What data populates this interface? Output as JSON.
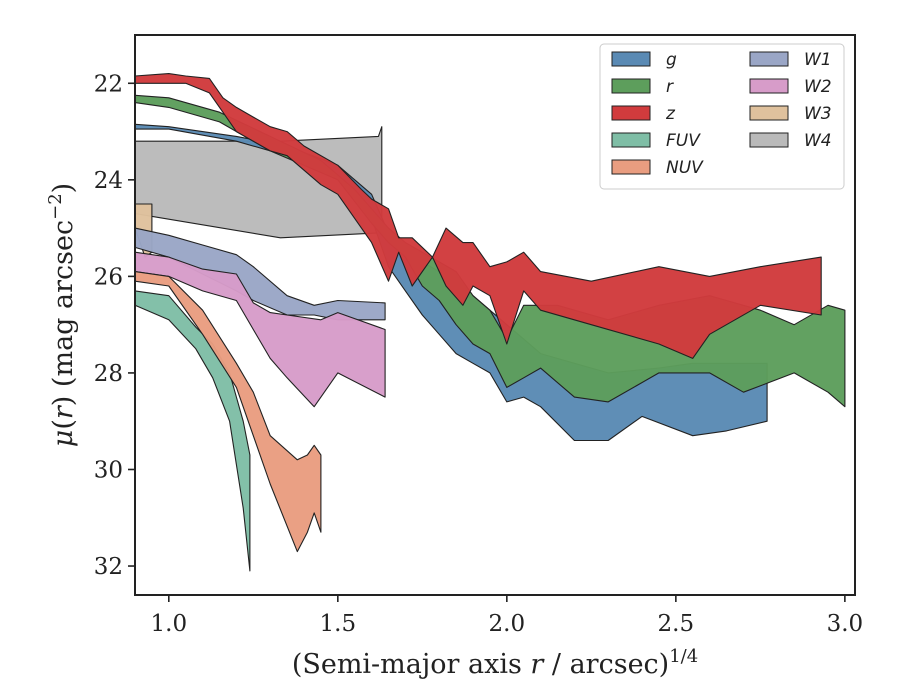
{
  "chart_data": {
    "type": "area",
    "title": "",
    "xlabel": "(Semi-major axis r / arcsec)^{1/4}",
    "ylabel": "μ(r) (mag arcsec^{-2})",
    "xlim": [
      0.9,
      3.03
    ],
    "ylim": [
      32.6,
      21.0
    ],
    "y_inverted": true,
    "xticks": [
      1.0,
      1.5,
      2.0,
      2.5,
      3.0
    ],
    "xtick_labels": [
      "1.0",
      "1.5",
      "2.0",
      "2.5",
      "3.0"
    ],
    "yticks": [
      22,
      24,
      26,
      28,
      30,
      32
    ],
    "ytick_labels": [
      "22",
      "24",
      "26",
      "28",
      "30",
      "32"
    ],
    "grid": false,
    "legend_position": "top-right",
    "legend_columns": 2,
    "series": [
      {
        "name": "W4",
        "color": "#bababa",
        "x": [
          0.9,
          1.33,
          1.62,
          1.63,
          1.63,
          1.62,
          1.33,
          0.9
        ],
        "upper": [
          23.2,
          23.2,
          23.1,
          22.9,
          24.9,
          25.1,
          25.2,
          24.7
        ]
      },
      {
        "name": "W3",
        "color": "#dfc19d",
        "x": [
          0.9,
          0.93,
          0.95,
          0.95,
          0.93,
          0.9
        ],
        "upper": [
          24.5,
          24.5,
          24.5,
          25.5,
          25.6,
          25.0
        ]
      },
      {
        "name": "W1",
        "color": "#9aa6c6",
        "x": [
          0.9,
          1.0,
          1.1,
          1.2,
          1.25,
          1.35,
          1.43,
          1.5,
          1.64,
          1.64,
          1.5,
          1.43,
          1.35,
          1.25,
          1.2,
          1.1,
          1.0,
          0.9
        ],
        "upper": [
          25.0,
          25.15,
          25.35,
          25.55,
          25.8,
          26.4,
          26.6,
          26.5,
          26.55,
          26.9,
          26.9,
          26.8,
          26.8,
          26.5,
          26.3,
          25.95,
          25.6,
          25.4
        ]
      },
      {
        "name": "W2",
        "color": "#d79cc9",
        "x": [
          0.9,
          1.0,
          1.1,
          1.2,
          1.25,
          1.3,
          1.35,
          1.45,
          1.5,
          1.64,
          1.64,
          1.5,
          1.43,
          1.35,
          1.3,
          1.25,
          1.2,
          1.1,
          1.0,
          0.9
        ],
        "upper": [
          25.5,
          25.6,
          25.85,
          25.95,
          26.55,
          26.75,
          26.8,
          26.9,
          26.75,
          27.1,
          28.5,
          28.0,
          28.7,
          28.1,
          27.7,
          27.1,
          26.5,
          26.3,
          26.0,
          25.9
        ]
      },
      {
        "name": "FUV",
        "color": "#7fbea6",
        "x": [
          0.9,
          1.0,
          1.08,
          1.13,
          1.18,
          1.2,
          1.22,
          1.24,
          1.24,
          1.22,
          1.2,
          1.18,
          1.13,
          1.08,
          1.0,
          0.9
        ],
        "upper": [
          26.3,
          26.4,
          27.05,
          27.4,
          28.0,
          28.5,
          29.0,
          29.7,
          32.1,
          30.8,
          29.9,
          29.0,
          28.1,
          27.5,
          26.9,
          26.6
        ]
      },
      {
        "name": "NUV",
        "color": "#e99d80",
        "x": [
          0.9,
          1.0,
          1.1,
          1.2,
          1.25,
          1.3,
          1.38,
          1.41,
          1.43,
          1.45,
          1.45,
          1.43,
          1.41,
          1.38,
          1.3,
          1.25,
          1.2,
          1.1,
          1.0,
          0.9
        ],
        "upper": [
          25.9,
          26.0,
          26.7,
          27.8,
          28.4,
          29.3,
          29.8,
          29.7,
          29.5,
          29.7,
          31.3,
          30.9,
          31.3,
          31.7,
          30.3,
          29.3,
          28.3,
          27.2,
          26.2,
          26.1
        ]
      },
      {
        "name": "g",
        "color": "#5a8ab4",
        "x": [
          0.9,
          1.0,
          1.2,
          1.35,
          1.5,
          1.6,
          1.65,
          1.7,
          1.75,
          1.8,
          1.85,
          1.9,
          1.95,
          2.0,
          2.05,
          2.1,
          2.2,
          2.3,
          2.45,
          2.55,
          2.7,
          2.77,
          2.77,
          2.65,
          2.55,
          2.4,
          2.3,
          2.2,
          2.1,
          2.05,
          2.0,
          1.95,
          1.9,
          1.85,
          1.8,
          1.75,
          1.7,
          1.65,
          1.6,
          1.5,
          1.35,
          1.2,
          1.0,
          0.9
        ],
        "upper": [
          22.85,
          22.9,
          23.1,
          23.3,
          23.7,
          24.3,
          25.1,
          25.5,
          25.7,
          25.9,
          26.0,
          26.4,
          26.7,
          27.0,
          27.3,
          27.6,
          27.8,
          28.0,
          27.9,
          27.8,
          27.8,
          27.8,
          29.0,
          29.2,
          29.3,
          28.9,
          29.4,
          29.4,
          28.7,
          28.5,
          28.6,
          28.0,
          27.8,
          27.6,
          27.2,
          26.8,
          26.3,
          25.8,
          24.8,
          24.0,
          23.5,
          23.2,
          22.95,
          22.95
        ]
      },
      {
        "name": "r",
        "color": "#5d9e5c",
        "x": [
          0.9,
          1.0,
          1.15,
          1.3,
          1.45,
          1.55,
          1.6,
          1.65,
          1.7,
          1.75,
          1.8,
          1.85,
          1.9,
          1.95,
          2.0,
          2.05,
          2.15,
          2.3,
          2.45,
          2.6,
          2.75,
          2.85,
          2.95,
          3.0,
          3.0,
          2.95,
          2.85,
          2.7,
          2.6,
          2.45,
          2.3,
          2.2,
          2.1,
          2.05,
          2.0,
          1.95,
          1.9,
          1.85,
          1.8,
          1.75,
          1.7,
          1.65,
          1.6,
          1.5,
          1.3,
          1.15,
          1.0,
          0.9
        ],
        "upper": [
          22.25,
          22.3,
          22.6,
          23.1,
          23.6,
          24.2,
          24.6,
          25.0,
          25.3,
          25.5,
          25.7,
          25.9,
          26.4,
          26.7,
          27.3,
          26.6,
          26.6,
          26.9,
          26.6,
          26.4,
          26.7,
          27.0,
          26.6,
          26.7,
          28.7,
          28.4,
          28.0,
          28.4,
          28.0,
          28.0,
          28.6,
          28.5,
          27.9,
          28.1,
          28.3,
          27.6,
          27.4,
          27.0,
          26.5,
          26.2,
          25.6,
          25.3,
          24.9,
          24.0,
          23.4,
          22.8,
          22.5,
          22.4
        ]
      },
      {
        "name": "z",
        "color": "#d13b3d",
        "x": [
          0.9,
          1.0,
          1.05,
          1.12,
          1.16,
          1.2,
          1.25,
          1.3,
          1.35,
          1.4,
          1.5,
          1.57,
          1.6,
          1.65,
          1.68,
          1.72,
          1.78,
          1.82,
          1.87,
          1.9,
          1.95,
          2.0,
          2.05,
          2.1,
          2.25,
          2.45,
          2.6,
          2.75,
          2.93,
          2.93,
          2.75,
          2.6,
          2.55,
          2.45,
          2.25,
          2.1,
          2.05,
          2.0,
          1.95,
          1.9,
          1.87,
          1.82,
          1.78,
          1.72,
          1.68,
          1.65,
          1.6,
          1.5,
          1.45,
          1.35,
          1.3,
          1.25,
          1.2,
          1.16,
          1.12,
          1.05,
          1.0,
          0.9
        ],
        "upper": [
          21.85,
          21.8,
          21.85,
          21.9,
          22.3,
          22.5,
          22.7,
          22.9,
          23.0,
          23.3,
          23.7,
          24.2,
          24.4,
          24.6,
          25.2,
          25.2,
          25.6,
          25.0,
          25.3,
          25.3,
          25.8,
          25.7,
          25.5,
          25.9,
          26.1,
          25.8,
          26.0,
          25.8,
          25.6,
          26.8,
          26.6,
          27.2,
          27.7,
          27.4,
          27.0,
          26.7,
          26.3,
          27.4,
          26.4,
          26.2,
          26.6,
          26.2,
          25.6,
          26.2,
          25.5,
          26.1,
          25.3,
          24.3,
          24.1,
          23.5,
          23.4,
          23.2,
          23.0,
          22.6,
          22.2,
          22.0,
          22.0,
          22.0
        ]
      }
    ],
    "legend": {
      "col1": [
        {
          "name": "g",
          "color": "#5a8ab4"
        },
        {
          "name": "r",
          "color": "#5d9e5c"
        },
        {
          "name": "z",
          "color": "#d13b3d"
        },
        {
          "name": "FUV",
          "color": "#7fbea6"
        },
        {
          "name": "NUV",
          "color": "#e99d80"
        }
      ],
      "col2": [
        {
          "name": "W1",
          "color": "#9aa6c6"
        },
        {
          "name": "W2",
          "color": "#d79cc9"
        },
        {
          "name": "W3",
          "color": "#dfc19d"
        },
        {
          "name": "W4",
          "color": "#bababa"
        }
      ]
    }
  }
}
